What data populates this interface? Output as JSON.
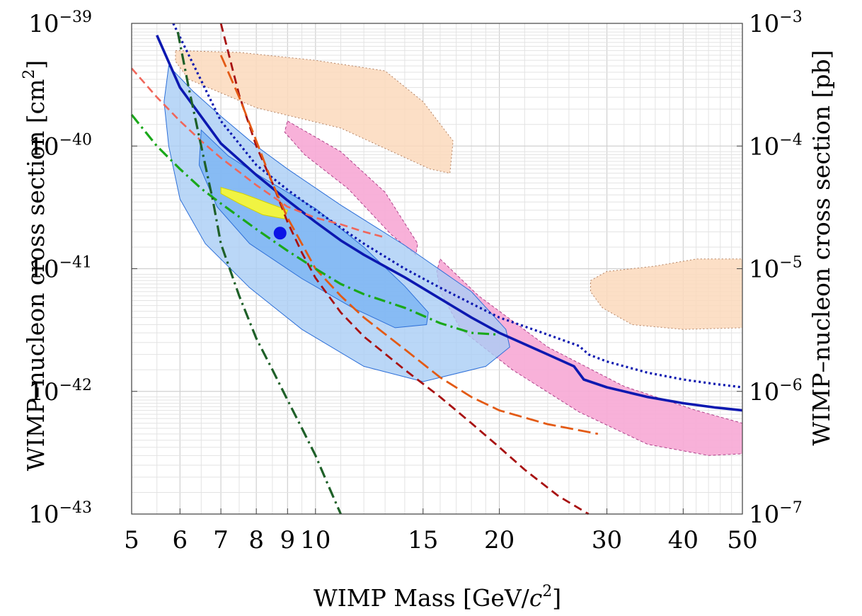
{
  "chart_data": {
    "type": "line",
    "xlabel": "WIMP Mass [GeV/c²]",
    "xlabel_parts": {
      "prefix": "WIMP Mass [GeV/",
      "italic": "c",
      "sup": "2",
      "suffix": "]"
    },
    "ylabel": "WIMP–nucleon cross section [cm²]",
    "ylabel_parts": {
      "text": "WIMP–nucleon cross section [cm",
      "sup": "2",
      "suffix": "]"
    },
    "y2label": "WIMP–nucleon cross section [pb]",
    "x_scale": "log",
    "y_scale": "log",
    "xlim": [
      5,
      50
    ],
    "ylim": [
      1e-43,
      1e-39
    ],
    "y2lim": [
      1e-07,
      0.001
    ],
    "grid": true,
    "x_ticks": [
      {
        "value": 5,
        "label": "5"
      },
      {
        "value": 6,
        "label": "6"
      },
      {
        "value": 7,
        "label": "7"
      },
      {
        "value": 8,
        "label": "8"
      },
      {
        "value": 9,
        "label": "9"
      },
      {
        "value": 10,
        "label": "10"
      },
      {
        "value": 15,
        "label": "15"
      },
      {
        "value": 20,
        "label": "20"
      },
      {
        "value": 30,
        "label": "30"
      },
      {
        "value": 40,
        "label": "40"
      },
      {
        "value": 50,
        "label": "50"
      }
    ],
    "y_ticks": [
      {
        "value": 1e-43,
        "base": "10",
        "exp": "−43"
      },
      {
        "value": 1e-42,
        "base": "10",
        "exp": "−42"
      },
      {
        "value": 1e-41,
        "base": "10",
        "exp": "−41"
      },
      {
        "value": 1e-40,
        "base": "10",
        "exp": "−40"
      },
      {
        "value": 1e-39,
        "base": "10",
        "exp": "−39"
      }
    ],
    "y2_ticks": [
      {
        "value": 1e-07,
        "base": "10",
        "exp": "−7"
      },
      {
        "value": 1e-06,
        "base": "10",
        "exp": "−6"
      },
      {
        "value": 1e-05,
        "base": "10",
        "exp": "−5"
      },
      {
        "value": 0.0001,
        "base": "10",
        "exp": "−4"
      },
      {
        "value": 0.001,
        "base": "10",
        "exp": "−3"
      }
    ],
    "regions": [
      {
        "color": "#fbd9bc",
        "stroke": "#b48060",
        "dash": "2,3",
        "opacity": 0.85,
        "points": [
          [
            5.9,
            6e-40
          ],
          [
            7.5,
            5.8e-40
          ],
          [
            10,
            5e-40
          ],
          [
            13,
            4.1e-40
          ],
          [
            15,
            2.3e-40
          ],
          [
            16.8,
            1.1e-40
          ],
          [
            16.6,
            6e-41
          ],
          [
            15.4,
            6.5e-41
          ],
          [
            11,
            1.4e-40
          ],
          [
            8,
            2.05e-40
          ],
          [
            6.2,
            3.5e-40
          ],
          [
            5.9,
            4.9e-40
          ]
        ]
      },
      {
        "color": "#fbd9bc",
        "stroke": "#b48060",
        "dash": "2,3",
        "opacity": 0.85,
        "points": [
          [
            28.2,
            8e-42
          ],
          [
            30,
            9.5e-42
          ],
          [
            36,
            1.05e-41
          ],
          [
            42,
            1.2e-41
          ],
          [
            50,
            1.2e-41
          ],
          [
            50,
            3.3e-42
          ],
          [
            40,
            3.2e-42
          ],
          [
            33,
            3.5e-42
          ],
          [
            29.5,
            4.8e-42
          ],
          [
            28.2,
            6.5e-42
          ]
        ]
      },
      {
        "color": "#f7a8d5",
        "stroke": "#b0408a",
        "dash": "4,3",
        "opacity": 0.9,
        "points": [
          [
            9,
            1.6e-40
          ],
          [
            11,
            9e-41
          ],
          [
            13,
            4.2e-41
          ],
          [
            14.7,
            1.6e-41
          ],
          [
            14.6,
            1.3e-41
          ],
          [
            13.3,
            1.9e-41
          ],
          [
            11.3,
            4.5e-41
          ],
          [
            9.6,
            8.5e-41
          ],
          [
            8.9,
            1.3e-40
          ]
        ]
      },
      {
        "color": "#f7a8d5",
        "stroke": "#b0408a",
        "dash": "4,3",
        "opacity": 0.9,
        "points": [
          [
            16,
            1.2e-41
          ],
          [
            18.5,
            6e-42
          ],
          [
            24,
            2.3e-42
          ],
          [
            32,
            1.1e-42
          ],
          [
            42,
            7e-43
          ],
          [
            50,
            5.5e-43
          ],
          [
            50,
            3.1e-43
          ],
          [
            44,
            3e-43
          ],
          [
            35,
            3.7e-43
          ],
          [
            27,
            6.8e-43
          ],
          [
            21,
            1.5e-42
          ],
          [
            17.3,
            3.2e-42
          ],
          [
            16,
            6.5e-42
          ],
          [
            15.8,
            9.5e-42
          ]
        ]
      },
      {
        "color": "#a9cdf5",
        "stroke": "#2d6fd8",
        "dash": "",
        "opacity": 0.8,
        "points": [
          [
            5.75,
            4.5e-40
          ],
          [
            6.3,
            2.8e-40
          ],
          [
            7,
            1.75e-40
          ],
          [
            8,
            1e-40
          ],
          [
            9,
            6.5e-41
          ],
          [
            11,
            3.3e-41
          ],
          [
            14,
            1.55e-41
          ],
          [
            18,
            6.5e-42
          ],
          [
            20.5,
            3.2e-42
          ],
          [
            20.8,
            2.3e-42
          ],
          [
            19,
            1.6e-42
          ],
          [
            15,
            1.2e-42
          ],
          [
            12,
            1.6e-42
          ],
          [
            9.5,
            3.2e-42
          ],
          [
            7.8,
            7e-42
          ],
          [
            6.6,
            1.6e-41
          ],
          [
            6,
            3.7e-41
          ],
          [
            5.75,
            1e-40
          ],
          [
            5.65,
            2.3e-40
          ]
        ]
      },
      {
        "color": "#7bb4f2",
        "stroke": "#2d6fd8",
        "dash": "",
        "opacity": 0.8,
        "points": [
          [
            6.5,
            1.35e-40
          ],
          [
            7.2,
            8.3e-41
          ],
          [
            8.2,
            5.5e-41
          ],
          [
            10,
            3.1e-41
          ],
          [
            12,
            1.5e-41
          ],
          [
            14,
            7.2e-42
          ],
          [
            15.3,
            4.4e-42
          ],
          [
            15.2,
            3.5e-42
          ],
          [
            13.5,
            3.3e-42
          ],
          [
            11.5,
            4.8e-42
          ],
          [
            9.5,
            8.3e-42
          ],
          [
            7.8,
            1.6e-41
          ],
          [
            6.9,
            3.2e-41
          ],
          [
            6.45,
            7e-41
          ]
        ]
      },
      {
        "color": "#f5f538",
        "stroke": "#d0d000",
        "dash": "",
        "opacity": 0.95,
        "points": [
          [
            7,
            4.6e-41
          ],
          [
            7.6,
            4.1e-41
          ],
          [
            8.4,
            3.4e-41
          ],
          [
            9,
            3e-41
          ],
          [
            8.9,
            2.55e-41
          ],
          [
            8.2,
            2.75e-41
          ],
          [
            7.5,
            3.4e-41
          ],
          [
            7,
            4.1e-41
          ]
        ]
      }
    ],
    "series": [
      {
        "color": "#0c18b0",
        "width": 3.6,
        "dash": "",
        "x": [
          5.5,
          6,
          7,
          8,
          9,
          10,
          11,
          12,
          14,
          16,
          18,
          20,
          24,
          26.5,
          27.5,
          30,
          35,
          40,
          45,
          50
        ],
        "y": [
          8e-40,
          3e-40,
          1.05e-40,
          5.8e-41,
          3.6e-41,
          2.4e-41,
          1.7e-41,
          1.3e-41,
          8.5e-42,
          5.7e-42,
          4e-42,
          3e-42,
          2e-42,
          1.6e-42,
          1.25e-42,
          1.08e-42,
          9e-43,
          8e-43,
          7.4e-43,
          7e-43
        ]
      },
      {
        "color": "#0c18b0",
        "width": 3.2,
        "dash": "3,4",
        "x": [
          5.85,
          6.4,
          7,
          8,
          9,
          10,
          12,
          14,
          16,
          18,
          20,
          24,
          27,
          28,
          30,
          35,
          40,
          45,
          50
        ],
        "y": [
          1e-39,
          4e-40,
          1.6e-40,
          7e-41,
          4.4e-41,
          3e-41,
          1.6e-41,
          1e-41,
          7e-42,
          5.2e-42,
          4e-42,
          2.9e-42,
          2.35e-42,
          2e-42,
          1.75e-42,
          1.42e-42,
          1.25e-42,
          1.15e-42,
          1.08e-42
        ]
      },
      {
        "color": "#a81111",
        "width": 2.8,
        "dash": "12,7",
        "x": [
          7,
          7.5,
          8,
          8.5,
          9,
          9.5,
          10,
          11,
          12,
          14,
          16,
          18,
          20,
          22,
          25,
          28
        ],
        "y": [
          1e-39,
          2.6e-40,
          1e-40,
          5e-41,
          2.4e-41,
          1.35e-41,
          8.4e-42,
          4.4e-42,
          2.8e-42,
          1.5e-42,
          9e-43,
          5.5e-43,
          3.5e-43,
          2.3e-43,
          1.4e-43,
          1e-43
        ]
      },
      {
        "color": "#e35a14",
        "width": 2.8,
        "dash": "18,7",
        "x": [
          7,
          7.5,
          8,
          8.5,
          9,
          10,
          11,
          12,
          14,
          16,
          18,
          20,
          24,
          29
        ],
        "y": [
          5.5e-40,
          2.5e-40,
          1.1e-40,
          5e-41,
          2.6e-41,
          1e-41,
          6e-42,
          4e-42,
          2.2e-42,
          1.3e-42,
          9e-43,
          7e-43,
          5.4e-43,
          4.5e-43
        ]
      },
      {
        "color": "#f0665a",
        "width": 2.6,
        "dash": "11,6",
        "x": [
          5,
          5.5,
          6,
          6.5,
          7,
          8,
          9,
          10,
          11,
          12,
          13
        ],
        "y": [
          4.3e-40,
          2.5e-40,
          1.6e-40,
          1.1e-40,
          8e-41,
          4.8e-41,
          3.2e-41,
          2.6e-41,
          2.3e-41,
          2e-41,
          1.8e-41
        ]
      },
      {
        "color": "#1aa81a",
        "width": 3.2,
        "dash": "16,6,3,6",
        "x": [
          5,
          5.5,
          6,
          6.5,
          7,
          8,
          9,
          10,
          11,
          12,
          14,
          16,
          18,
          20
        ],
        "y": [
          1.8e-40,
          1e-40,
          6.5e-41,
          4.5e-41,
          3.4e-41,
          2.1e-41,
          1.4e-41,
          1e-41,
          7.5e-42,
          6.2e-42,
          4.8e-42,
          3.6e-42,
          3e-42,
          2.9e-42
        ]
      },
      {
        "color": "#1e6028",
        "width": 3.2,
        "dash": "16,6,3,6",
        "x": [
          5.95,
          6.2,
          6.5,
          6.8,
          7,
          7.5,
          8,
          8.5,
          9,
          9.5,
          10,
          10.5,
          11
        ],
        "y": [
          8.5e-40,
          3e-40,
          1e-40,
          3.5e-41,
          1.6e-41,
          6e-42,
          2.7e-42,
          1.5e-42,
          8.5e-43,
          5e-43,
          3e-43,
          1.7e-43,
          1e-43
        ]
      }
    ],
    "points": [
      {
        "x": 8.75,
        "y": 1.95e-41,
        "color": "#0a14e6"
      }
    ]
  }
}
